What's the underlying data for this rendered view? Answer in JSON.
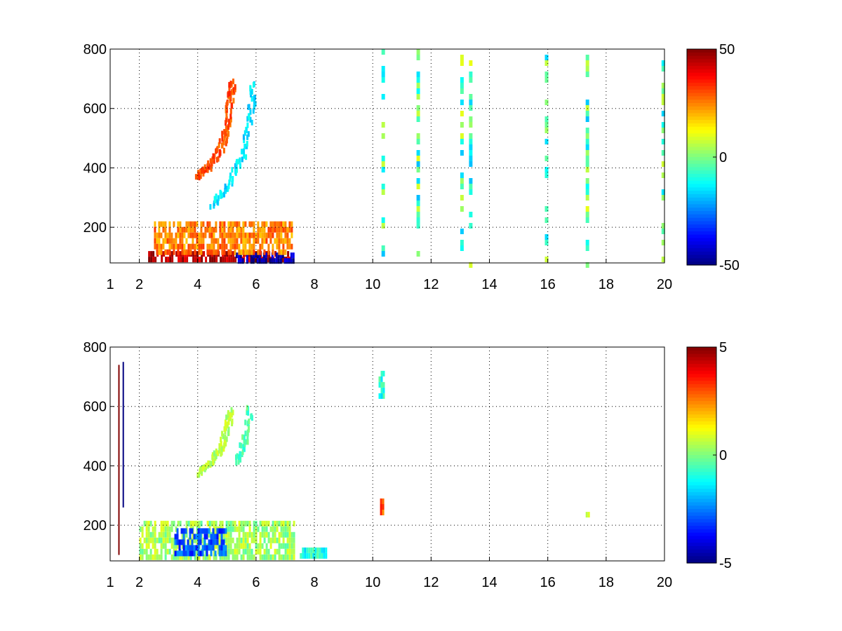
{
  "chart_data": [
    {
      "type": "heatmap",
      "title": "",
      "xlabel": "",
      "ylabel": "",
      "xlim": [
        1,
        20
      ],
      "ylim": [
        80,
        800
      ],
      "x_ticks": [
        1,
        2,
        4,
        6,
        8,
        10,
        12,
        14,
        16,
        18,
        20
      ],
      "y_ticks": [
        200,
        400,
        600,
        800
      ],
      "grid": true,
      "colormap": "jet",
      "clim": [
        -50,
        50
      ],
      "colorbar_ticks": [
        50,
        0,
        -50
      ],
      "features": [
        {
          "kind": "band",
          "x_range": [
            2.3,
            7.2
          ],
          "y_range": [
            85,
            120
          ],
          "value": 45
        },
        {
          "kind": "band",
          "x_range": [
            5.3,
            7.3
          ],
          "y_range": [
            85,
            115
          ],
          "value": -45
        },
        {
          "kind": "band",
          "x_range": [
            2.5,
            7.2
          ],
          "y_range": [
            120,
            220
          ],
          "value": 25
        },
        {
          "kind": "curve",
          "points": [
            [
              4.0,
              380
            ],
            [
              4.4,
              420
            ],
            [
              4.8,
              480
            ],
            [
              5.0,
              560
            ],
            [
              5.1,
              650
            ],
            [
              5.15,
              700
            ]
          ],
          "value": 30
        },
        {
          "kind": "curve",
          "points": [
            [
              4.5,
              280
            ],
            [
              5.0,
              350
            ],
            [
              5.5,
              450
            ],
            [
              5.8,
              600
            ],
            [
              5.9,
              700
            ]
          ],
          "value": -15
        },
        {
          "kind": "sparse_columns",
          "x": [
            10.3,
            11.5,
            13.0,
            13.3,
            15.9,
            17.3,
            19.9
          ],
          "value": -10
        }
      ]
    },
    {
      "type": "heatmap",
      "title": "",
      "xlabel": "",
      "ylabel": "",
      "xlim": [
        1,
        20
      ],
      "ylim": [
        80,
        800
      ],
      "x_ticks": [
        1,
        2,
        4,
        6,
        8,
        10,
        12,
        14,
        16,
        18,
        20
      ],
      "y_ticks": [
        200,
        400,
        600,
        800
      ],
      "grid": true,
      "colormap": "jet",
      "clim": [
        -5,
        5
      ],
      "colorbar_ticks": [
        5,
        0,
        -5
      ],
      "features": [
        {
          "kind": "column",
          "x": 1.45,
          "y_range": [
            260,
            750
          ],
          "value": -5
        },
        {
          "kind": "column",
          "x": 1.3,
          "y_range": [
            100,
            740
          ],
          "value": 5
        },
        {
          "kind": "curve",
          "points": [
            [
              4.0,
              380
            ],
            [
              4.4,
              420
            ],
            [
              4.8,
              470
            ],
            [
              5.0,
              540
            ],
            [
              5.1,
              600
            ]
          ],
          "value": 0.5
        },
        {
          "kind": "curve",
          "points": [
            [
              5.3,
              420
            ],
            [
              5.6,
              500
            ],
            [
              5.8,
              620
            ]
          ],
          "value": -0.5
        },
        {
          "kind": "band",
          "x_range": [
            2.0,
            7.3
          ],
          "y_range": [
            90,
            215
          ],
          "value": 0.3
        },
        {
          "kind": "band",
          "x_range": [
            3.2,
            5.0
          ],
          "y_range": [
            100,
            190
          ],
          "value": -3
        },
        {
          "kind": "patch",
          "x_range": [
            7.5,
            8.4
          ],
          "y_range": [
            105,
            125
          ],
          "value": -1
        },
        {
          "kind": "patch",
          "x_range": [
            10.2,
            10.35
          ],
          "y_range": [
            640,
            720
          ],
          "value": -1
        },
        {
          "kind": "patch",
          "x_range": [
            10.25,
            10.35
          ],
          "y_range": [
            250,
            290
          ],
          "value": 3
        },
        {
          "kind": "patch",
          "x_range": [
            17.3,
            17.4
          ],
          "y_range": [
            240,
            245
          ],
          "value": 0.5
        }
      ]
    }
  ]
}
